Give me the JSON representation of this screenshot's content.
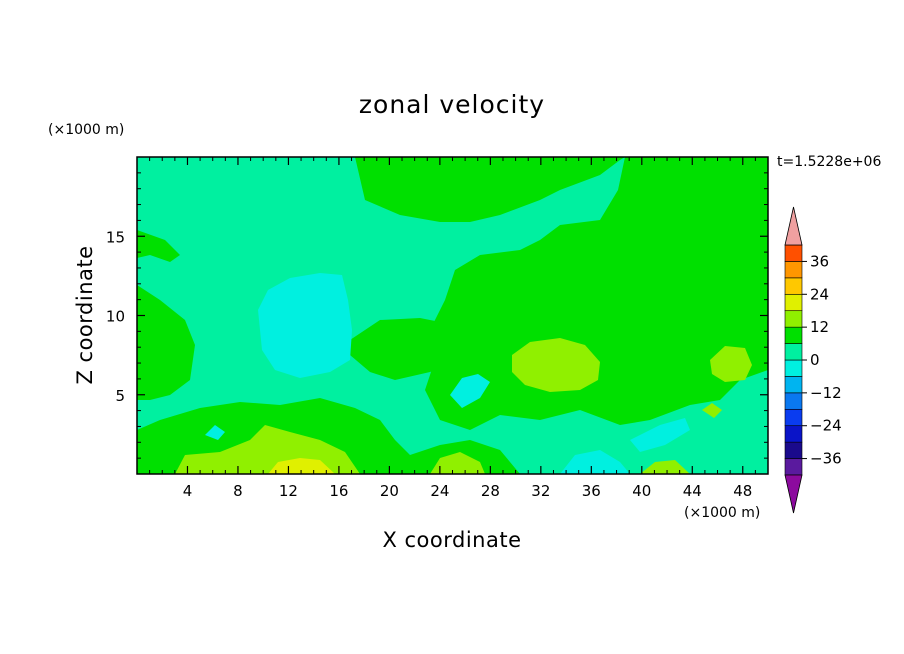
{
  "chart_data": {
    "type": "heatmap",
    "title": "zonal velocity",
    "xlabel": "X coordinate",
    "ylabel": "Z coordinate",
    "x_unit": "(×1000 m)",
    "y_unit": "(×1000 m)",
    "time_label": "t=1.5228e+06",
    "xlim": [
      0,
      50
    ],
    "ylim": [
      0,
      20
    ],
    "x_ticks": [
      4,
      8,
      12,
      16,
      20,
      24,
      28,
      32,
      36,
      40,
      44,
      48
    ],
    "y_ticks": [
      5,
      10,
      15
    ],
    "colorbar": {
      "levels": [
        -42,
        -36,
        -30,
        -24,
        -18,
        -12,
        -6,
        0,
        6,
        12,
        18,
        24,
        30,
        36,
        42
      ],
      "tick_values": [
        -36,
        -24,
        -12,
        0,
        12,
        24,
        36
      ],
      "tick_labels": [
        "−36",
        "−24",
        "−12",
        "0",
        "12",
        "24",
        "36"
      ],
      "colors": [
        "#5a1a9e",
        "#1a0a8c",
        "#0a14c8",
        "#0a3cf0",
        "#0a78f0",
        "#00b4f0",
        "#00f0e0",
        "#00f0a0",
        "#00e000",
        "#90f000",
        "#e0f000",
        "#ffc800",
        "#ff9600",
        "#ff5000",
        "#f01414"
      ],
      "under_color": "#8c0a9e",
      "over_color": "#f0a0a0"
    },
    "field_description_points": [
      {
        "x": 14,
        "y": 9.5,
        "value": -7
      },
      {
        "x": 25,
        "y": 6,
        "value": -5
      },
      {
        "x": 34,
        "y": 7.2,
        "value": 7
      },
      {
        "x": 45,
        "y": 7,
        "value": 6
      },
      {
        "x": 13,
        "y": 0.8,
        "value": 9
      },
      {
        "x": 35,
        "y": 1,
        "value": -8
      },
      {
        "x": 5,
        "y": 18,
        "value": -3
      },
      {
        "x": 38,
        "y": 17,
        "value": 1
      }
    ]
  }
}
